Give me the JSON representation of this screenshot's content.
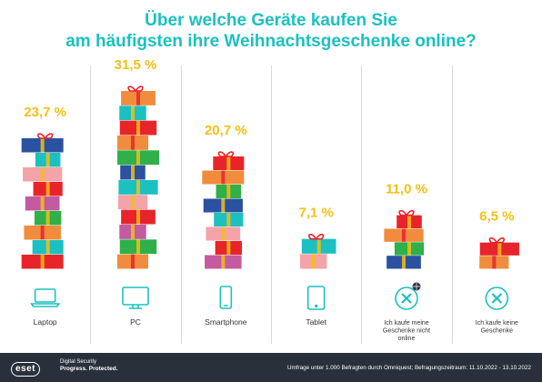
{
  "title_line1": "Über welche Geräte kaufen Sie",
  "title_line2": "am häufigsten ihre Weihnachtsgeschenke online?",
  "chart_data": {
    "type": "bar",
    "title": "Über welche Geräte kaufen Sie am häufigsten ihre Weihnachtsgeschenke online?",
    "unit": "%",
    "categories": [
      "Laptop",
      "PC",
      "Smartphone",
      "Tablet",
      "Ich kaufe meine Geschenke nicht online",
      "Ich kaufe keine Geschenke"
    ],
    "category_label_lines": [
      [
        "Laptop"
      ],
      [
        "PC"
      ],
      [
        "Smartphone"
      ],
      [
        "Tablet"
      ],
      [
        "Ich kaufe meine",
        "Geschenke nicht",
        "online"
      ],
      [
        "Ich kaufe keine",
        "Geschenke"
      ]
    ],
    "values": [
      23.7,
      31.5,
      20.7,
      7.1,
      11.0,
      6.5
    ],
    "value_labels": [
      "23,7 %",
      "31,5 %",
      "20,7 %",
      "7,1 %",
      "11,0 %",
      "6,5 %"
    ],
    "icons": [
      "laptop-icon",
      "pc-monitor-icon",
      "smartphone-icon",
      "tablet-icon",
      "offline-cross-icon",
      "no-gifts-cross-icon"
    ],
    "grid": false,
    "legend": "none"
  },
  "colors": {
    "title": "#1cc0c0",
    "value_label": "#f3c012",
    "icon": "#1cc0c0",
    "divider": "#d9d9d9",
    "footer_bg": "#29303b",
    "gift_palette": [
      "#e8242b",
      "#f08c3c",
      "#f4a3a8",
      "#2fb04a",
      "#1cc0c0",
      "#c45aa0",
      "#2a52a0",
      "#a0522d"
    ]
  },
  "footer": {
    "brand": "eset",
    "tagline_line1": "Digital Security",
    "tagline_line2": "Progress. Protected.",
    "source": "Umfrage unter 1.000 Befragten durch Omniquest; Befragungszeitraum: 11.10.2022 - 13.10.2022"
  }
}
